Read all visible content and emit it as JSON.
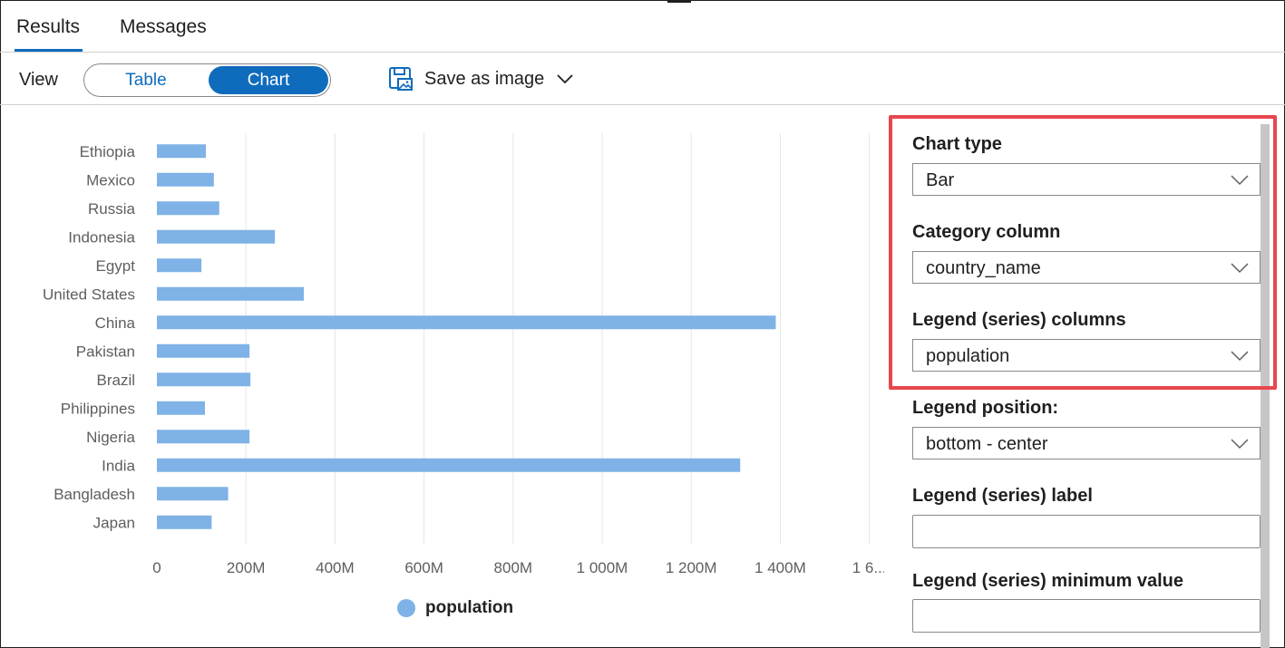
{
  "tabs": [
    {
      "label": "Results",
      "active": true
    },
    {
      "label": "Messages",
      "active": false
    }
  ],
  "viewbar": {
    "view_label": "View",
    "toggle_table": "Table",
    "toggle_chart": "Chart",
    "selected": "Chart",
    "save_label": "Save as image",
    "save_icon": "save-image-icon",
    "chevron_icon": "chevron-down-icon"
  },
  "chart_data": {
    "type": "bar",
    "orientation": "horizontal",
    "categories": [
      "Ethiopia",
      "Mexico",
      "Russia",
      "Indonesia",
      "Egypt",
      "United States",
      "China",
      "Pakistan",
      "Brazil",
      "Philippines",
      "Nigeria",
      "India",
      "Bangladesh",
      "Japan"
    ],
    "series": [
      {
        "name": "population",
        "values": [
          110,
          128,
          140,
          265,
          100,
          330,
          1390,
          208,
          210,
          108,
          208,
          1310,
          160,
          123
        ]
      }
    ],
    "x_tick_labels": [
      "0",
      "200M",
      "400M",
      "600M",
      "800M",
      "1 000M",
      "1 200M",
      "1 400M",
      "1 6..."
    ],
    "xlim": [
      0,
      1600
    ],
    "x_unit": "M",
    "grid": true,
    "legend_position": "bottom-center",
    "color": "#7fb2e6"
  },
  "panel": {
    "chart_type": {
      "label": "Chart type",
      "value": "Bar"
    },
    "category_column": {
      "label": "Category column",
      "value": "country_name"
    },
    "legend_columns": {
      "label": "Legend (series) columns",
      "value": "population"
    },
    "legend_position": {
      "label": "Legend position:",
      "value": "bottom - center"
    },
    "legend_label": {
      "label": "Legend (series) label",
      "value": ""
    },
    "legend_min": {
      "label": "Legend (series) minimum value",
      "value": ""
    }
  },
  "colors": {
    "accent": "#0f6cbd",
    "highlight": "#e8464e",
    "bar": "#7fb2e6"
  }
}
